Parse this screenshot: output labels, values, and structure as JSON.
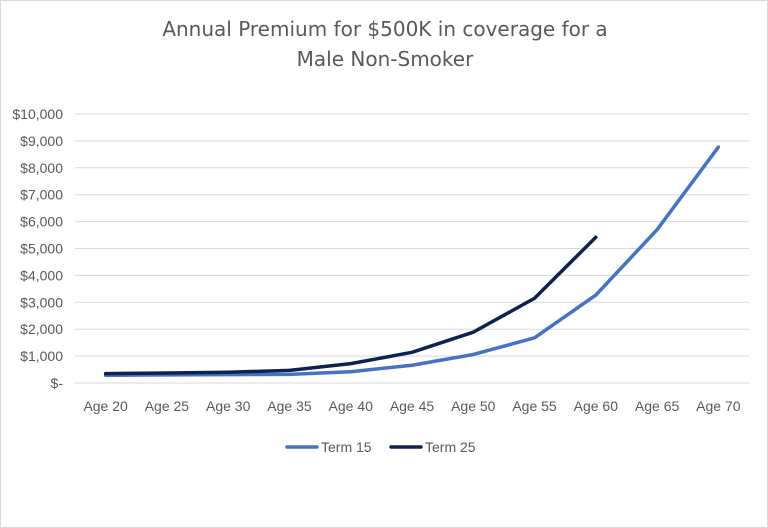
{
  "chart_data": {
    "type": "line",
    "title_lines": [
      "Annual Premium for $500K in coverage for a",
      "Male Non-Smoker"
    ],
    "xlabel": "",
    "ylabel": "",
    "categories": [
      "Age 20",
      "Age 25",
      "Age 30",
      "Age 35",
      "Age 40",
      "Age 45",
      "Age 50",
      "Age 55",
      "Age 60",
      "Age 65",
      "Age 70"
    ],
    "ylim": [
      0,
      10000
    ],
    "y_ticks": [
      0,
      1000,
      2000,
      3000,
      4000,
      5000,
      6000,
      7000,
      8000,
      9000,
      10000
    ],
    "y_tick_labels": [
      "$-",
      "$1,000",
      "$2,000",
      "$3,000",
      "$4,000",
      "$5,000",
      "$6,000",
      "$7,000",
      "$8,000",
      "$9,000",
      "$10,000"
    ],
    "grid": true,
    "legend_position": "bottom",
    "series": [
      {
        "name": "Term 15",
        "color": "#4472c4",
        "values": [
          290,
          300,
          310,
          320,
          420,
          660,
          1060,
          1680,
          3270,
          5700,
          8770
        ]
      },
      {
        "name": "Term 25",
        "color": "#0e2251",
        "values": [
          350,
          370,
          400,
          470,
          720,
          1140,
          1890,
          3150,
          5420,
          null,
          null
        ]
      }
    ]
  }
}
